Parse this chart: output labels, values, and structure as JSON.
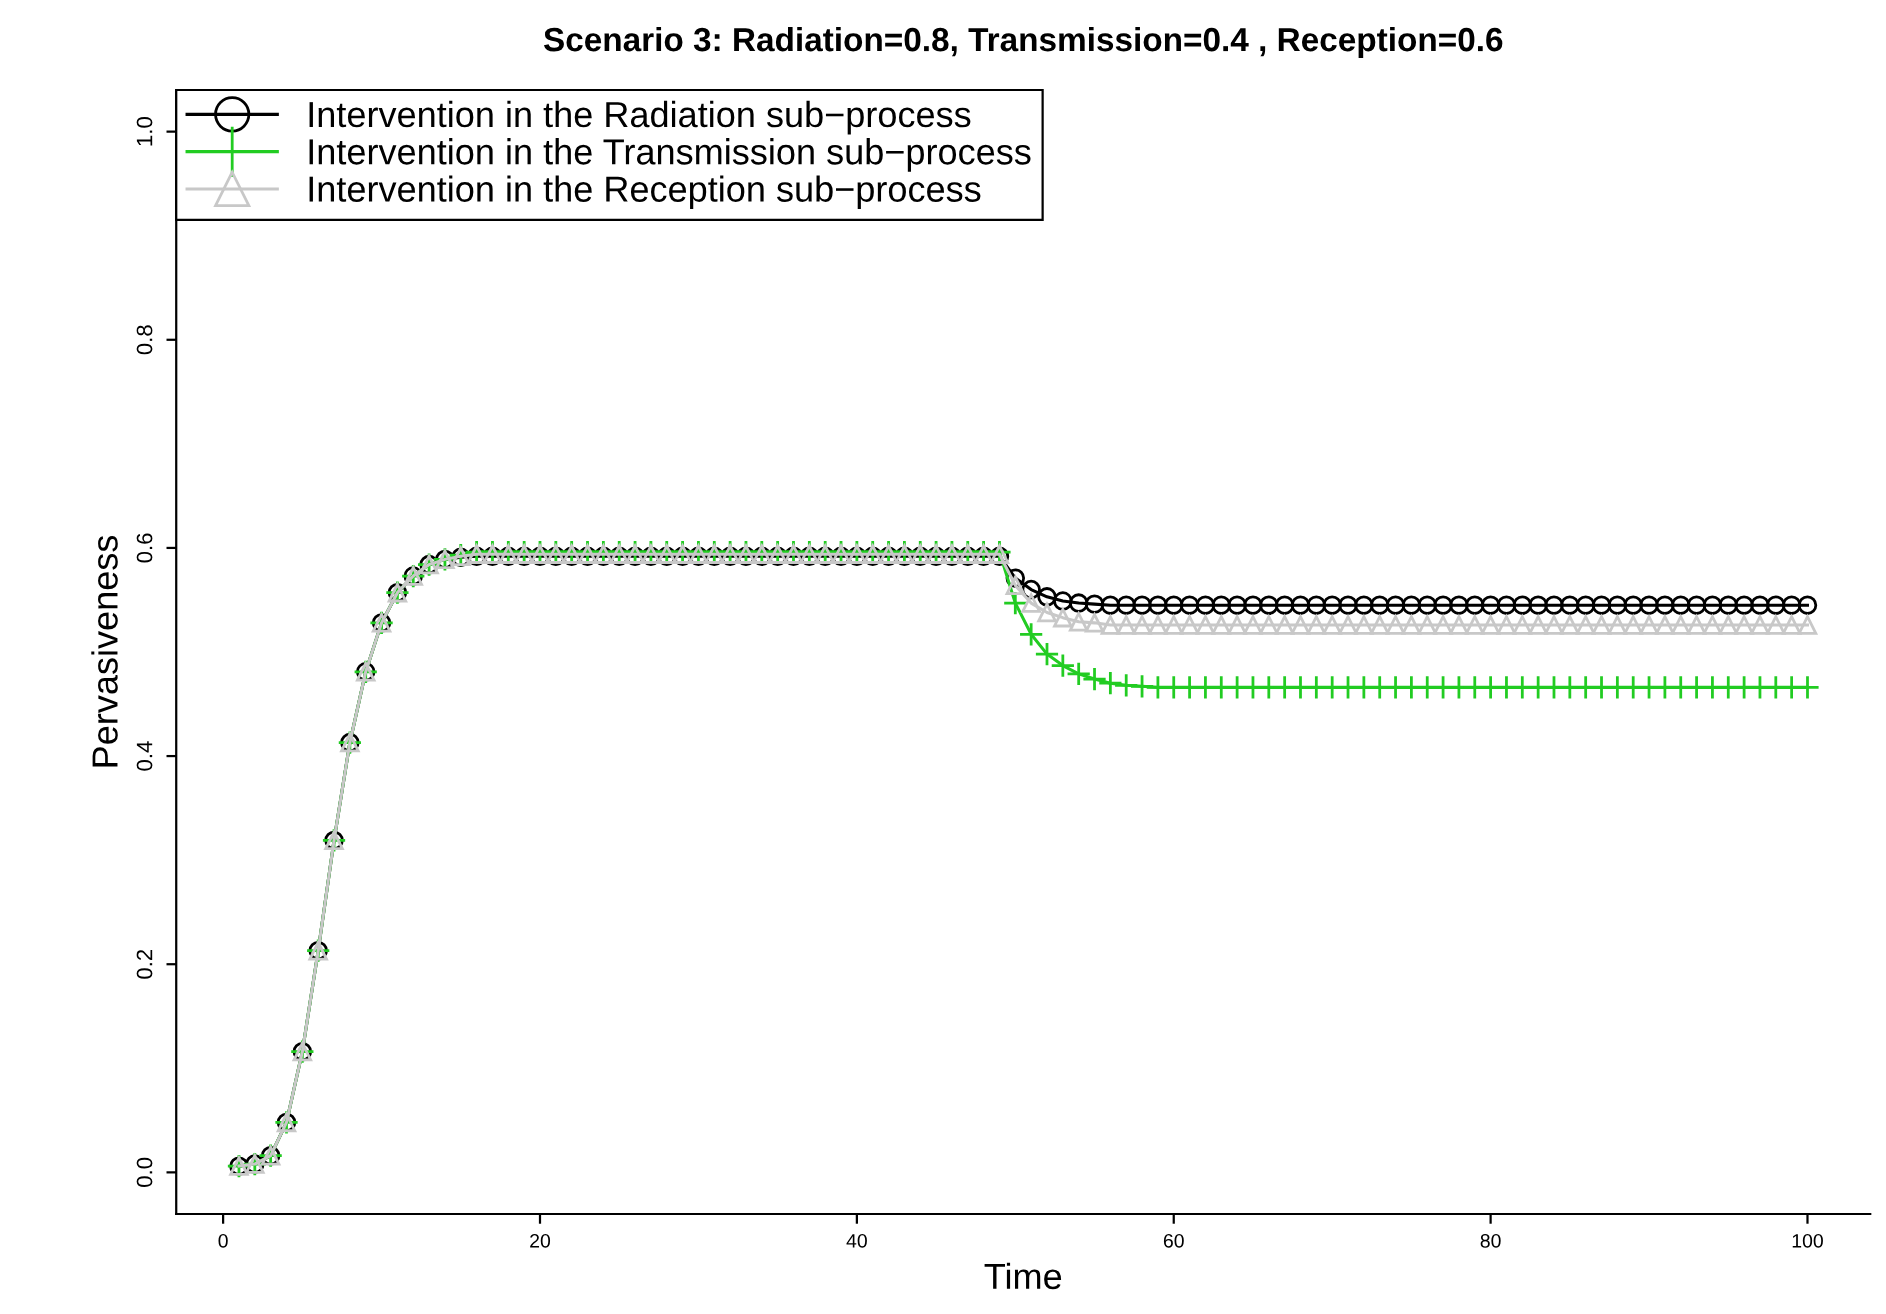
{
  "chart_data": {
    "type": "line",
    "title": "Scenario 3: Radiation=0.8, Transmission=0.4 , Reception=0.6",
    "xlabel": "Time",
    "ylabel": "Pervasiveness",
    "x": [
      1,
      2,
      3,
      4,
      5,
      6,
      7,
      8,
      9,
      10,
      11,
      12,
      13,
      14,
      15,
      16,
      17,
      18,
      19,
      20,
      21,
      22,
      23,
      24,
      25,
      26,
      27,
      28,
      29,
      30,
      31,
      32,
      33,
      34,
      35,
      36,
      37,
      38,
      39,
      40,
      41,
      42,
      43,
      44,
      45,
      46,
      47,
      48,
      49,
      50,
      51,
      52,
      53,
      54,
      55,
      56,
      57,
      58,
      59,
      60,
      61,
      62,
      63,
      64,
      65,
      66,
      67,
      68,
      69,
      70,
      71,
      72,
      73,
      74,
      75,
      76,
      77,
      78,
      79,
      80,
      81,
      82,
      83,
      84,
      85,
      86,
      87,
      88,
      89,
      90,
      91,
      92,
      93,
      94,
      95,
      96,
      97,
      98,
      99,
      100
    ],
    "series": [
      {
        "name": "Intervention in the Radiation sub−process",
        "color": "#000000",
        "marker": "circle",
        "values": [
          0.006,
          0.008,
          0.016,
          0.048,
          0.116,
          0.213,
          0.319,
          0.413,
          0.481,
          0.528,
          0.557,
          0.573,
          0.584,
          0.589,
          0.591,
          0.592,
          0.592,
          0.592,
          0.592,
          0.592,
          0.592,
          0.592,
          0.592,
          0.592,
          0.592,
          0.592,
          0.592,
          0.592,
          0.592,
          0.592,
          0.592,
          0.592,
          0.592,
          0.592,
          0.592,
          0.592,
          0.592,
          0.592,
          0.592,
          0.592,
          0.592,
          0.592,
          0.592,
          0.592,
          0.592,
          0.592,
          0.592,
          0.592,
          0.592,
          0.571,
          0.56,
          0.553,
          0.549,
          0.547,
          0.546,
          0.545,
          0.545,
          0.545,
          0.545,
          0.545,
          0.545,
          0.545,
          0.545,
          0.545,
          0.545,
          0.545,
          0.545,
          0.545,
          0.545,
          0.545,
          0.545,
          0.545,
          0.545,
          0.545,
          0.545,
          0.545,
          0.545,
          0.545,
          0.545,
          0.545,
          0.545,
          0.545,
          0.545,
          0.545,
          0.545,
          0.545,
          0.545,
          0.545,
          0.545,
          0.545,
          0.545,
          0.545,
          0.545,
          0.545,
          0.545,
          0.545,
          0.545,
          0.545,
          0.545,
          0.545
        ]
      },
      {
        "name": "Intervention in the Transmission sub−process",
        "color": "#22cc22",
        "marker": "cross",
        "values": [
          0.006,
          0.008,
          0.016,
          0.048,
          0.116,
          0.213,
          0.319,
          0.413,
          0.481,
          0.528,
          0.557,
          0.573,
          0.584,
          0.589,
          0.593,
          0.596,
          0.596,
          0.596,
          0.596,
          0.596,
          0.596,
          0.596,
          0.596,
          0.596,
          0.596,
          0.596,
          0.596,
          0.596,
          0.596,
          0.596,
          0.596,
          0.596,
          0.596,
          0.596,
          0.596,
          0.596,
          0.596,
          0.596,
          0.596,
          0.596,
          0.596,
          0.596,
          0.596,
          0.596,
          0.596,
          0.596,
          0.596,
          0.596,
          0.596,
          0.547,
          0.517,
          0.498,
          0.487,
          0.479,
          0.474,
          0.47,
          0.468,
          0.467,
          0.466,
          0.466,
          0.466,
          0.466,
          0.466,
          0.466,
          0.466,
          0.466,
          0.466,
          0.466,
          0.466,
          0.466,
          0.466,
          0.466,
          0.466,
          0.466,
          0.466,
          0.466,
          0.466,
          0.466,
          0.466,
          0.466,
          0.466,
          0.466,
          0.466,
          0.466,
          0.466,
          0.466,
          0.466,
          0.466,
          0.466,
          0.466,
          0.466,
          0.466,
          0.466,
          0.466,
          0.466,
          0.466,
          0.466,
          0.466,
          0.466,
          0.466
        ]
      },
      {
        "name": "Intervention in the Reception sub−process",
        "color": "#c8c8c8",
        "marker": "triangle",
        "values": [
          0.006,
          0.008,
          0.016,
          0.048,
          0.116,
          0.213,
          0.319,
          0.413,
          0.481,
          0.528,
          0.557,
          0.573,
          0.584,
          0.589,
          0.592,
          0.594,
          0.594,
          0.594,
          0.594,
          0.594,
          0.594,
          0.594,
          0.594,
          0.594,
          0.594,
          0.594,
          0.594,
          0.594,
          0.594,
          0.594,
          0.594,
          0.594,
          0.594,
          0.594,
          0.594,
          0.594,
          0.594,
          0.594,
          0.594,
          0.594,
          0.594,
          0.594,
          0.594,
          0.594,
          0.594,
          0.594,
          0.594,
          0.594,
          0.594,
          0.564,
          0.547,
          0.538,
          0.533,
          0.529,
          0.528,
          0.526,
          0.526,
          0.526,
          0.526,
          0.526,
          0.526,
          0.526,
          0.526,
          0.526,
          0.526,
          0.526,
          0.526,
          0.526,
          0.526,
          0.526,
          0.526,
          0.526,
          0.526,
          0.526,
          0.526,
          0.526,
          0.526,
          0.526,
          0.526,
          0.526,
          0.526,
          0.526,
          0.526,
          0.526,
          0.526,
          0.526,
          0.526,
          0.526,
          0.526,
          0.526,
          0.526,
          0.526,
          0.526,
          0.526,
          0.526,
          0.526,
          0.526,
          0.526,
          0.526,
          0.526
        ]
      }
    ],
    "xlim": [
      -2.96,
      103.96
    ],
    "ylim": [
      -0.04,
      1.04
    ],
    "xticks": [
      0,
      20,
      40,
      60,
      80,
      100
    ],
    "yticks": [
      {
        "value": 0,
        "label": "0.0"
      },
      {
        "value": 0.2,
        "label": "0.2"
      },
      {
        "value": 0.4,
        "label": "0.4"
      },
      {
        "value": 0.6,
        "label": "0.6"
      },
      {
        "value": 0.8,
        "label": "0.8"
      },
      {
        "value": 1,
        "label": "1.0"
      }
    ],
    "legend": "top left",
    "grid": false,
    "line_style": "solid"
  }
}
